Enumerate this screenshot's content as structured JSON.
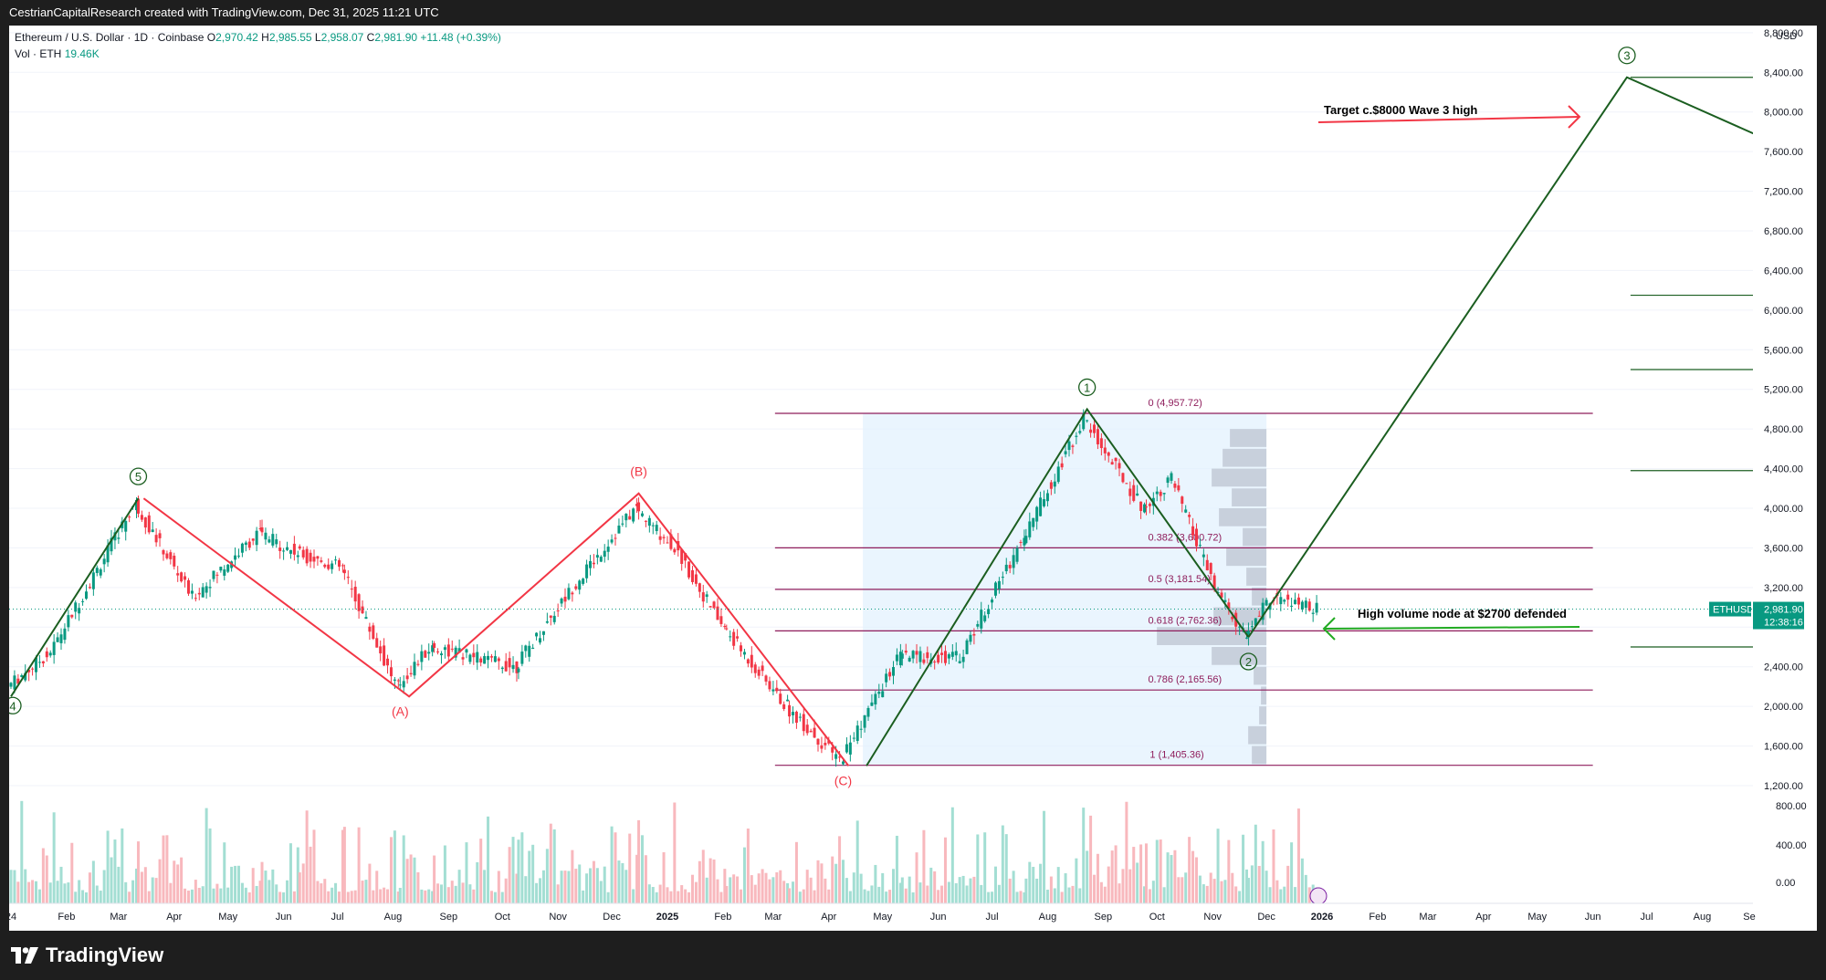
{
  "header": {
    "attribution": "CestrianCapitalResearch created with TradingView.com, Dec 31, 2025 11:21 UTC"
  },
  "legend": {
    "symbol": "Ethereum / U.S. Dollar · 1D · Coinbase",
    "open_label": "O",
    "open": "2,970.42",
    "high_label": "H",
    "high": "2,985.55",
    "low_label": "L",
    "low": "2,958.07",
    "close_label": "C",
    "close": "2,981.90",
    "change": "+11.48 (+0.39%)",
    "vol_label": "Vol · ETH",
    "vol": "19.46K"
  },
  "price_axis": {
    "currency": "USD",
    "ticks": [
      "8,800.00",
      "8,400.00",
      "8,000.00",
      "7,600.00",
      "7,200.00",
      "6,800.00",
      "6,400.00",
      "6,000.00",
      "5,600.00",
      "5,200.00",
      "4,800.00",
      "4,400.00",
      "4,000.00",
      "3,600.00",
      "3,200.00",
      "2,400.00",
      "2,000.00",
      "1,600.00",
      "1,200.00"
    ],
    "volume_ticks": [
      "800.00",
      "400.00",
      "0.00"
    ],
    "last_tag": "ETHUSD",
    "last_price": "2,981.90",
    "countdown": "12:38:16"
  },
  "time_axis": {
    "ticks": [
      "24",
      "Feb",
      "Mar",
      "Apr",
      "May",
      "Jun",
      "Jul",
      "Aug",
      "Sep",
      "Oct",
      "Nov",
      "Dec",
      "2025",
      "Feb",
      "Mar",
      "Apr",
      "May",
      "Jun",
      "Jul",
      "Aug",
      "Sep",
      "Oct",
      "Nov",
      "Dec",
      "2026",
      "Feb",
      "Mar",
      "Apr",
      "May",
      "Jun",
      "Jul",
      "Aug",
      "Se"
    ]
  },
  "annotations": {
    "target_text": "Target c.$8000 Wave 3 high",
    "hvn_text": "High volume node at $2700 defended",
    "wave_labels": [
      "4",
      "5",
      "(A)",
      "(B)",
      "(C)",
      "1",
      "2",
      "3"
    ],
    "fib_levels": [
      {
        "label": "0 (4,957.72)",
        "price": 4957.72
      },
      {
        "label": "0.382 (3,600.72)",
        "price": 3600.72
      },
      {
        "label": "0.5 (3,181.54)",
        "price": 3181.54
      },
      {
        "label": "0.618 (2,762.36)",
        "price": 2762.36
      },
      {
        "label": "0.786 (2,165.56)",
        "price": 2165.56
      },
      {
        "label": "1 (1,405.36)",
        "price": 1405.36
      }
    ]
  },
  "colors": {
    "up": "#089981",
    "down": "#f23645",
    "wave_green": "#1b5e20",
    "wave_red": "#f23645",
    "fib": "#8e1c5b",
    "accent": "#2962ff"
  },
  "brand": {
    "name": "TradingView"
  },
  "chart_data": {
    "type": "candlestick",
    "title": "Ethereum / U.S. Dollar · 1D · Coinbase",
    "y_unit": "USD",
    "ylim": [
      0,
      8900
    ],
    "price_path": {
      "x": [
        "2024-01-01",
        "2024-01-25",
        "2024-03-12",
        "2024-04-13",
        "2024-05-20",
        "2024-06-10",
        "2024-07-05",
        "2024-08-05",
        "2024-08-24",
        "2024-10-10",
        "2024-11-11",
        "2024-12-16",
        "2025-01-07",
        "2025-02-03",
        "2025-03-10",
        "2025-04-09",
        "2025-05-12",
        "2025-06-15",
        "2025-07-20",
        "2025-08-23",
        "2025-09-25",
        "2025-10-11",
        "2025-11-04",
        "2025-11-21",
        "2025-12-05",
        "2025-12-31"
      ],
      "close": [
        2200,
        2550,
        4050,
        3100,
        3750,
        3550,
        3400,
        2200,
        2600,
        2400,
        3200,
        4000,
        3600,
        2800,
        2000,
        1450,
        2500,
        2500,
        3700,
        4900,
        4000,
        4300,
        3200,
        2700,
        3100,
        2981.9
      ]
    },
    "projection": {
      "x": [
        "2025-11-21",
        "2026-06-20",
        "2026-09-15"
      ],
      "y": [
        2700,
        8350,
        7650
      ]
    },
    "elliott_waves": [
      {
        "label": "4",
        "x": "2024-01-01",
        "y": 2100
      },
      {
        "label": "5",
        "x": "2024-03-12",
        "y": 4100
      },
      {
        "label": "(A)",
        "x": "2024-08-05",
        "y": 2100
      },
      {
        "label": "(B)",
        "x": "2024-12-16",
        "y": 4150
      },
      {
        "label": "(C)",
        "x": "2025-04-09",
        "y": 1400
      },
      {
        "label": "1",
        "x": "2025-08-23",
        "y": 5000
      },
      {
        "label": "2",
        "x": "2025-11-21",
        "y": 2600
      },
      {
        "label": "3",
        "x": "2026-06-20",
        "y": 8350
      }
    ],
    "volume_axis_ticks": [
      800,
      400,
      0
    ]
  }
}
